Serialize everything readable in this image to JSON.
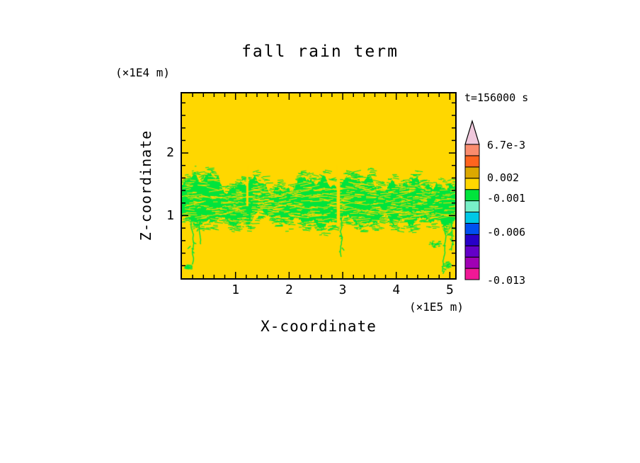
{
  "page": {
    "background": "#ffffff",
    "frame_color": "#000000"
  },
  "chart_data": {
    "type": "heatmap",
    "title": "fall rain term",
    "xlabel": "X-coordinate",
    "ylabel": "Z-coordinate",
    "x_unit": "(×1E5 m)",
    "y_unit": "(×1E4 m)",
    "annotation": "t=156000 s",
    "x_ticks": [
      1,
      2,
      3,
      4,
      5
    ],
    "y_ticks": [
      1,
      2
    ],
    "xlim": [
      0,
      5.1
    ],
    "ylim": [
      0,
      2.95
    ],
    "minor_tick_step": 0.2,
    "grid": false,
    "legend_position": "right-colorbar",
    "colorbar": {
      "vmin": -0.013,
      "vmax": 0.0067,
      "labels": [
        {
          "text": "6.7e-3",
          "value": 0.0067
        },
        {
          "text": "0.002",
          "value": 0.002
        },
        {
          "text": "-0.001",
          "value": -0.001
        },
        {
          "text": "-0.006",
          "value": -0.006
        },
        {
          "text": "-0.013",
          "value": -0.013
        }
      ],
      "segments_bottom_to_top": [
        "#F01896",
        "#A000B4",
        "#6400C8",
        "#2800C8",
        "#0050F0",
        "#00C8E6",
        "#78F0C8",
        "#00E43C",
        "#FFD700",
        "#DCA800",
        "#FF641E",
        "#FA8C6E"
      ],
      "overflow_triangle_color": "#F0C8DC"
    },
    "field": {
      "background_color": "#FFD700",
      "band_color": "#00E43C",
      "regions": [
        {
          "name": "background",
          "color": "#FFD700",
          "approx_value_range": [
            -0.001,
            0.002
          ],
          "description": "fall rain term near zero over most of the domain"
        },
        {
          "name": "rain-band",
          "color": "#00E43C",
          "approx_value_range": [
            -0.004,
            -0.001
          ],
          "z_range": [
            0.95,
            1.55
          ],
          "description": "ragged negative band spanning all x between z = 0.9e4 m and 1.6e4 m with fibrous torn edges"
        }
      ],
      "band": {
        "z_top": 1.55,
        "z_bottom": 0.95
      },
      "gaps": [
        {
          "x": 2.92,
          "width": 0.06,
          "z_top": 1.8,
          "z_bottom": 0.82
        },
        {
          "x": 1.22,
          "width": 0.04,
          "z_top": 1.8,
          "z_bottom": 1.15
        }
      ],
      "wisps": [
        {
          "x": 0.18,
          "z_start": 1.0,
          "z_end": 0.25
        },
        {
          "x": 0.32,
          "z_start": 0.95,
          "z_end": 0.55
        },
        {
          "x": 2.97,
          "z_start": 0.95,
          "z_end": 0.35
        },
        {
          "x": 4.88,
          "z_start": 0.95,
          "z_end": 0.12
        },
        {
          "x": 5.02,
          "z_start": 0.95,
          "z_end": 0.45
        }
      ],
      "blobs": [
        {
          "x": 4.72,
          "z": 0.55,
          "rx": 9,
          "ry": 5
        },
        {
          "x": 0.1,
          "z": 0.18,
          "rx": 5,
          "ry": 4
        },
        {
          "x": 4.95,
          "z": 0.22,
          "rx": 6,
          "ry": 5
        }
      ],
      "seed": 7
    }
  }
}
